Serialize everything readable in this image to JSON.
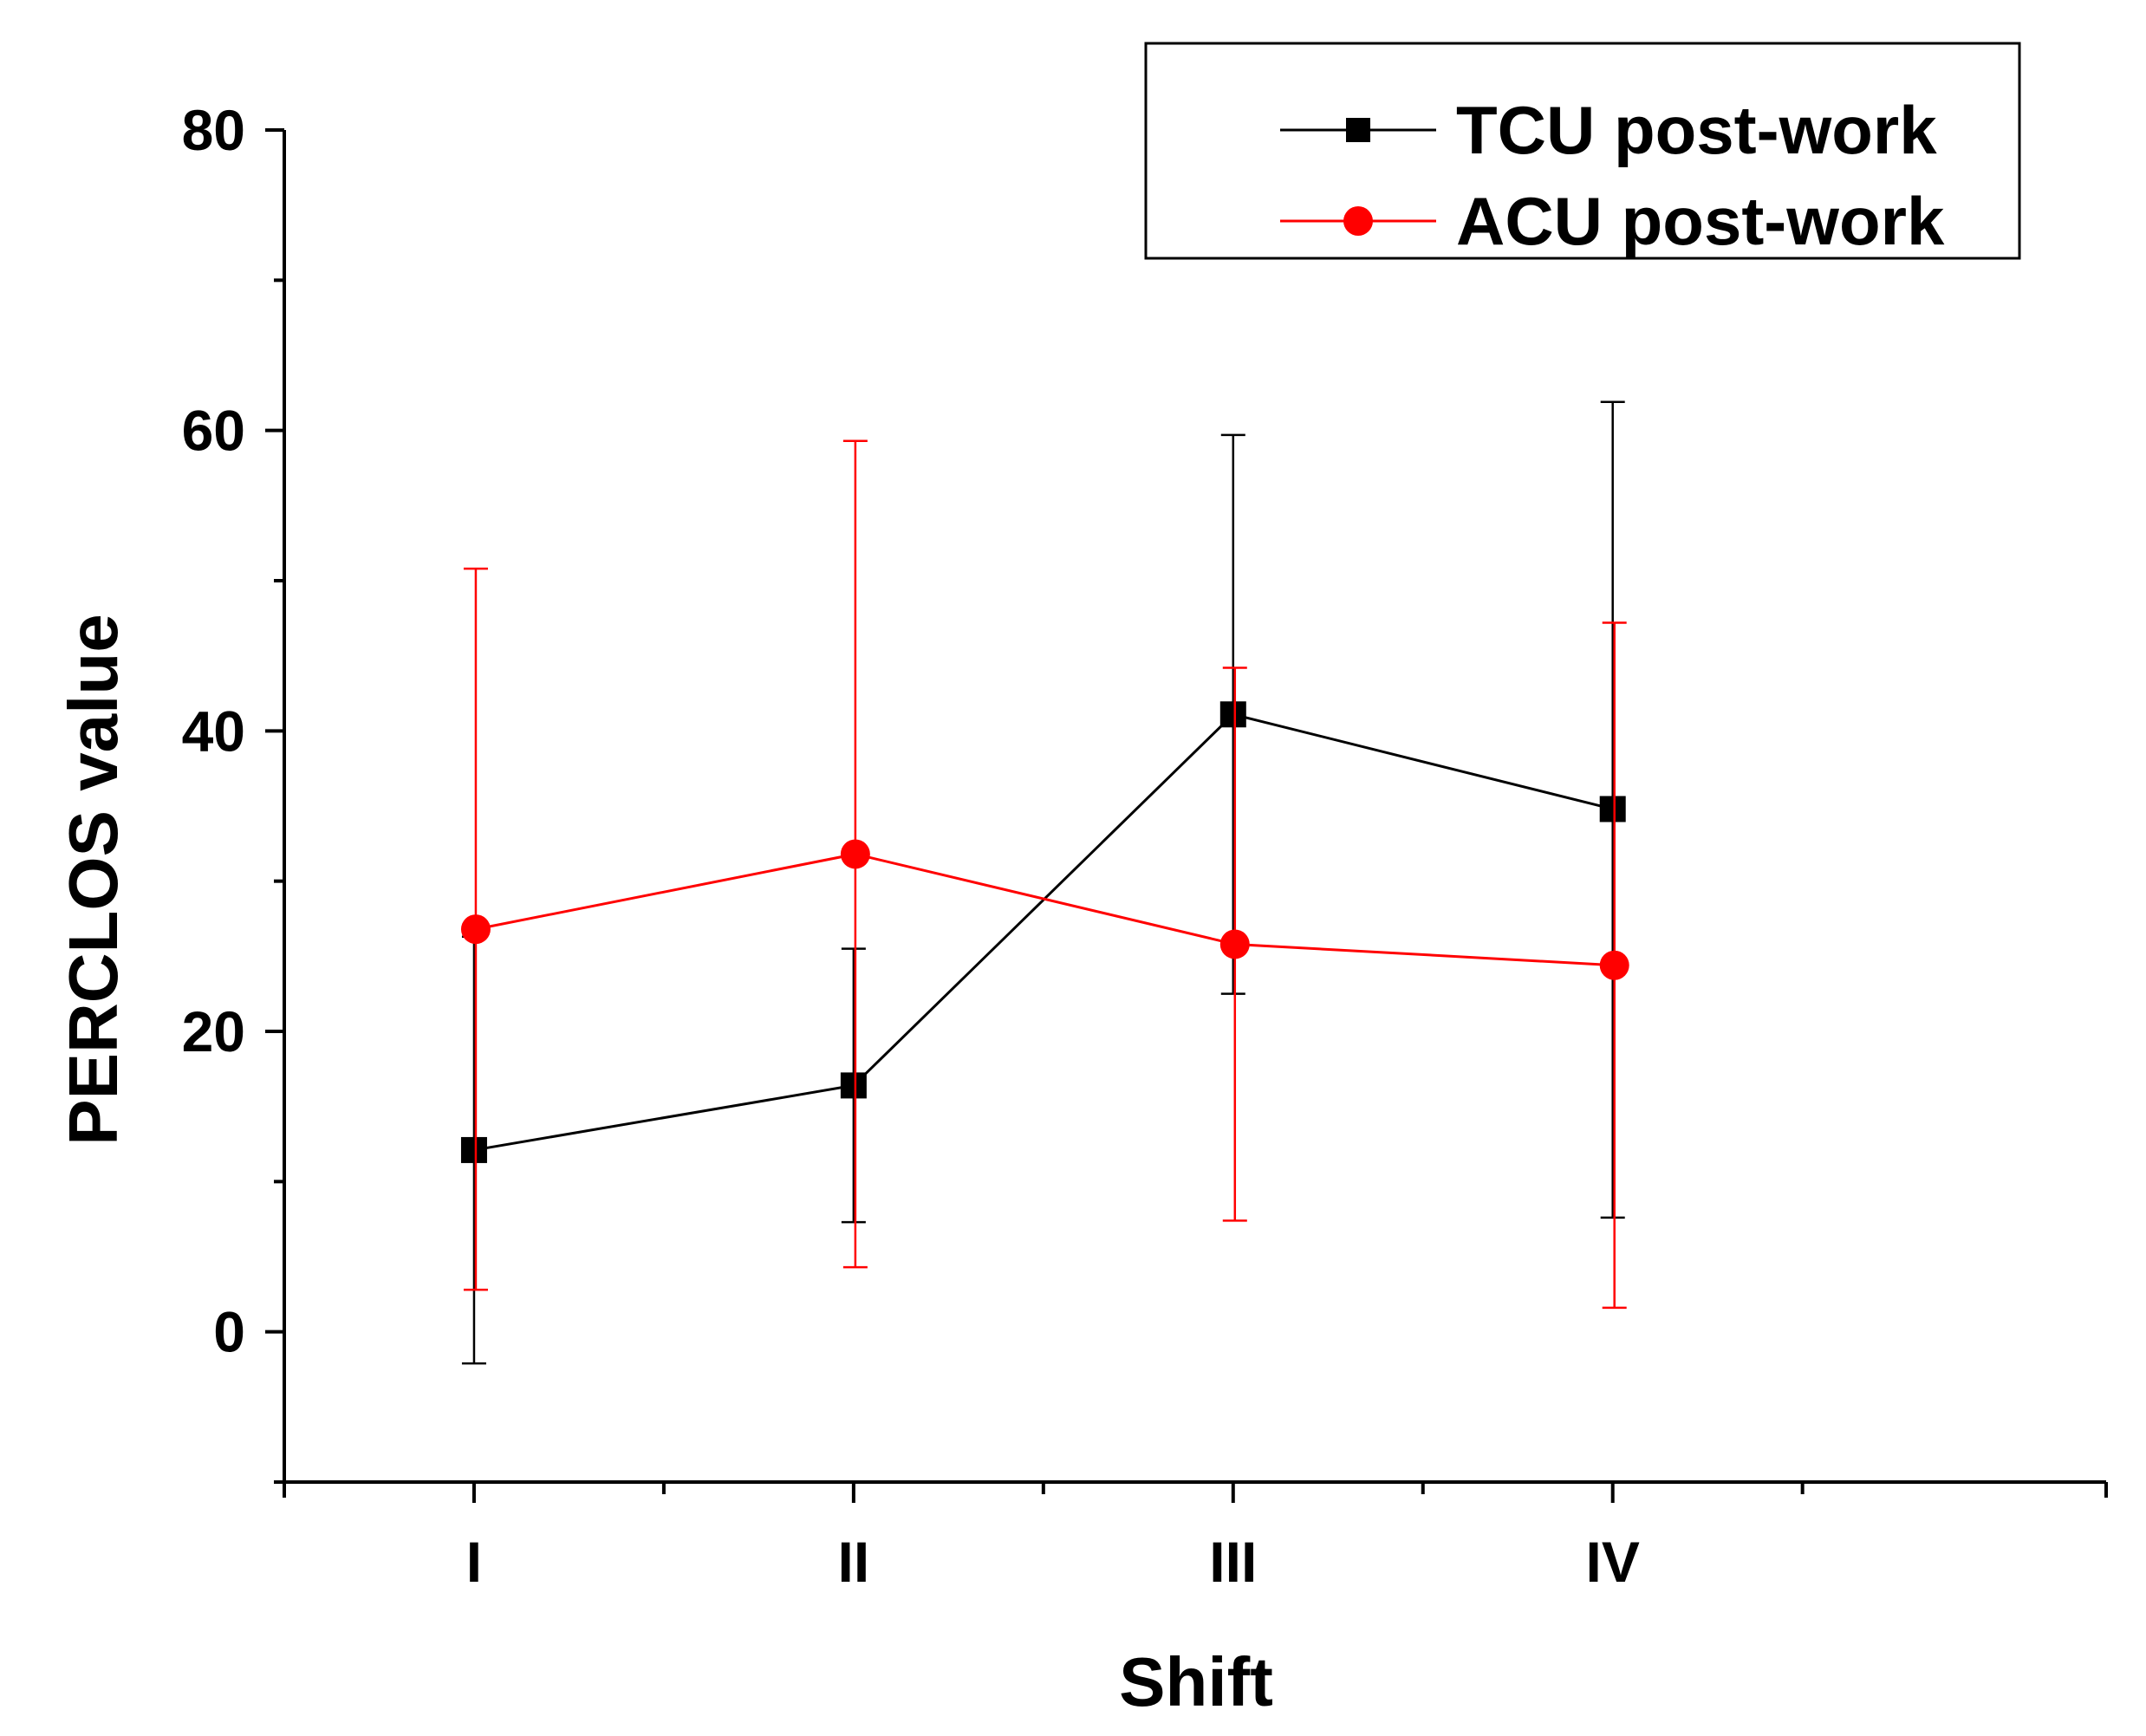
{
  "chart_data": {
    "type": "line",
    "title": "",
    "xlabel": "Shift",
    "ylabel": "PERCLOS value",
    "categories": [
      "I",
      "II",
      "III",
      "IV"
    ],
    "ylim": [
      -10,
      80
    ],
    "yticks": [
      0,
      20,
      40,
      60,
      80
    ],
    "yticks_minor": [
      -10,
      10,
      30,
      50,
      70
    ],
    "grid": false,
    "legend_position": "top-right",
    "series": [
      {
        "name": "TCU post-work",
        "color": "#000000",
        "marker": "square",
        "values": [
          12.1,
          16.4,
          41.1,
          34.8
        ],
        "error_upper": [
          26.3,
          25.5,
          59.7,
          61.9
        ],
        "error_lower": [
          -2.1,
          7.3,
          22.5,
          7.6
        ]
      },
      {
        "name": "ACU post-work",
        "color": "#ff0000",
        "marker": "circle",
        "values": [
          26.8,
          31.8,
          25.8,
          24.4
        ],
        "error_upper": [
          50.8,
          59.3,
          44.2,
          47.2
        ],
        "error_lower": [
          2.8,
          4.3,
          7.4,
          1.6
        ]
      }
    ]
  }
}
